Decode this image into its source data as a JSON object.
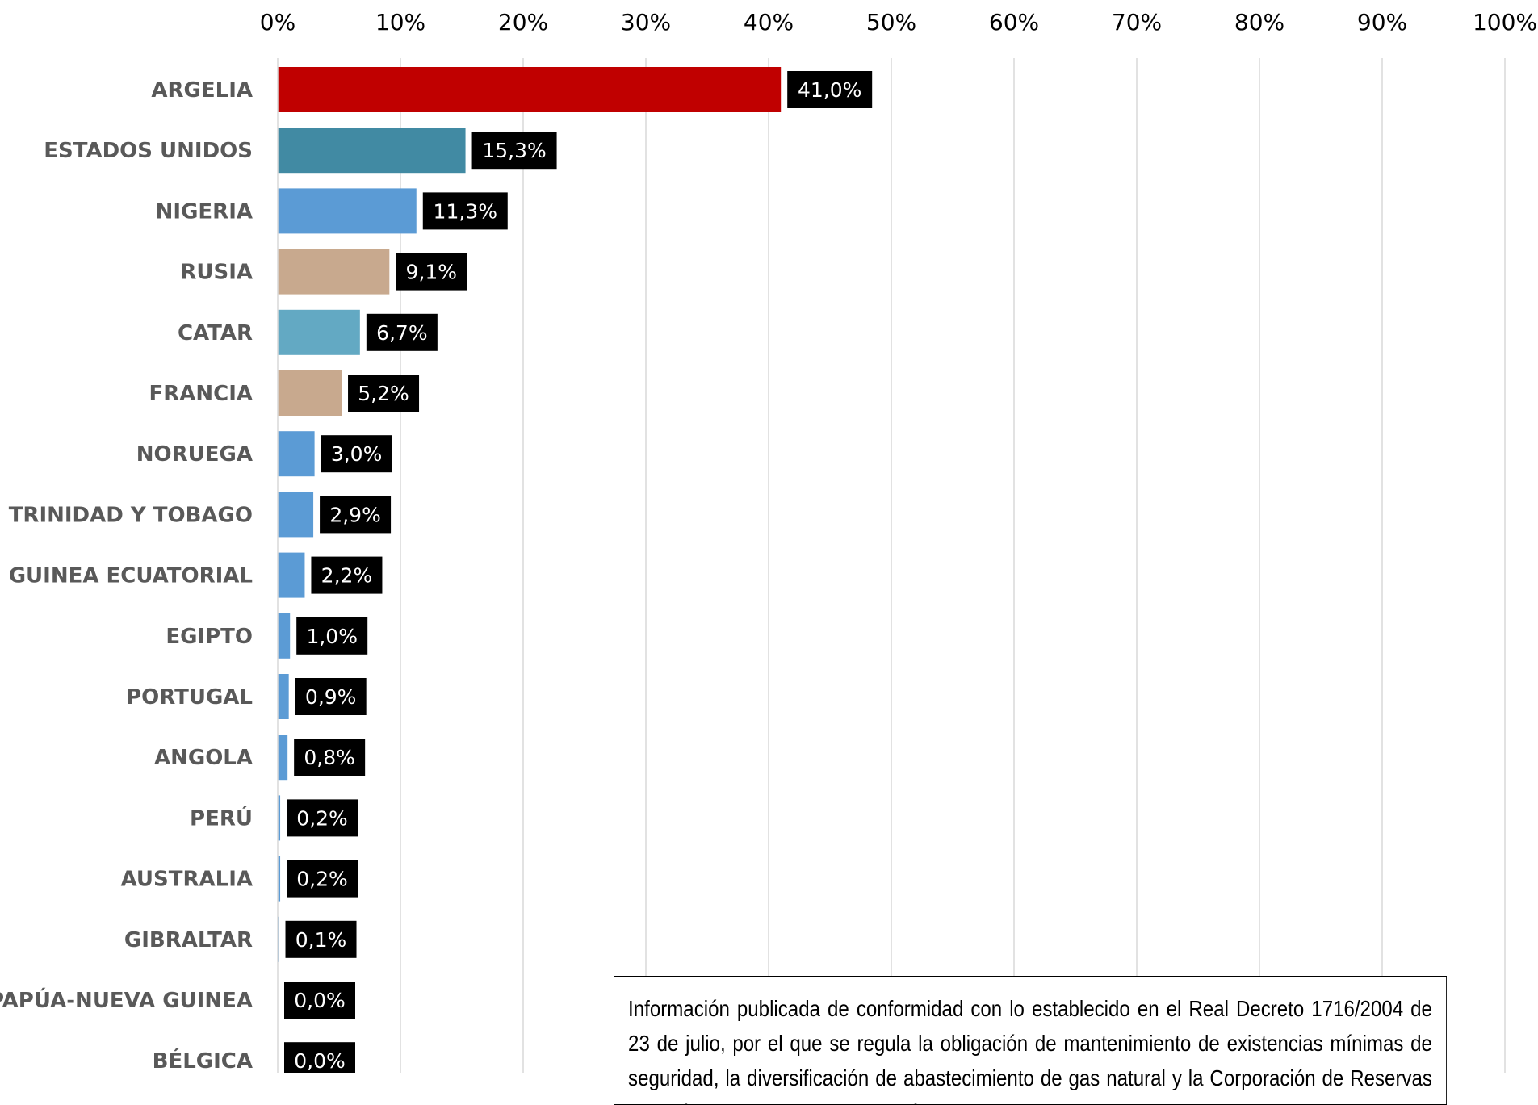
{
  "chart_data": {
    "type": "bar",
    "orientation": "horizontal",
    "categories": [
      "ARGELIA",
      "ESTADOS UNIDOS",
      "NIGERIA",
      "RUSIA",
      "CATAR",
      "FRANCIA",
      "NORUEGA",
      "TRINIDAD Y TOBAGO",
      "GUINEA ECUATORIAL",
      "EGIPTO",
      "PORTUGAL",
      "ANGOLA",
      "PERÚ",
      "AUSTRALIA",
      "GIBRALTAR",
      "PAPÚA-NUEVA GUINEA",
      "BÉLGICA"
    ],
    "values": [
      41.0,
      15.3,
      11.3,
      9.1,
      6.7,
      5.2,
      3.0,
      2.9,
      2.2,
      1.0,
      0.9,
      0.8,
      0.2,
      0.2,
      0.1,
      0.0,
      0.0
    ],
    "value_labels": [
      "41,0%",
      "15,3%",
      "11,3%",
      "9,1%",
      "6,7%",
      "5,2%",
      "3,0%",
      "2,9%",
      "2,2%",
      "1,0%",
      "0,9%",
      "0,8%",
      "0,2%",
      "0,2%",
      "0,1%",
      "0,0%",
      "0,0%"
    ],
    "colors": [
      "#C00000",
      "#418AA3",
      "#5B9BD5",
      "#C8A98E",
      "#63A9C3",
      "#C8A98E",
      "#5B9BD5",
      "#5B9BD5",
      "#5B9BD5",
      "#5B9BD5",
      "#5B9BD5",
      "#5B9BD5",
      "#5B9BD5",
      "#5B9BD5",
      "#5B9BD5",
      "#5B9BD5",
      "#5B9BD5"
    ],
    "xlim": [
      0,
      100
    ],
    "x_ticks": [
      "0%",
      "10%",
      "20%",
      "30%",
      "40%",
      "50%",
      "60%",
      "70%",
      "80%",
      "90%",
      "100%"
    ],
    "x_axis_position": "top",
    "grid": true,
    "title": "",
    "xlabel": "",
    "ylabel": ""
  },
  "note": {
    "text": "Información publicada de conformidad con lo establecido en el Real Decreto 1716/2004 de 23 de julio, por el que se regula la obligación de mantenimiento de existencias mínimas de seguridad, la diversificación de abastecimiento de gas natural y la Corporación de Reservas Estratégicas de Productos Petrolíferos."
  }
}
